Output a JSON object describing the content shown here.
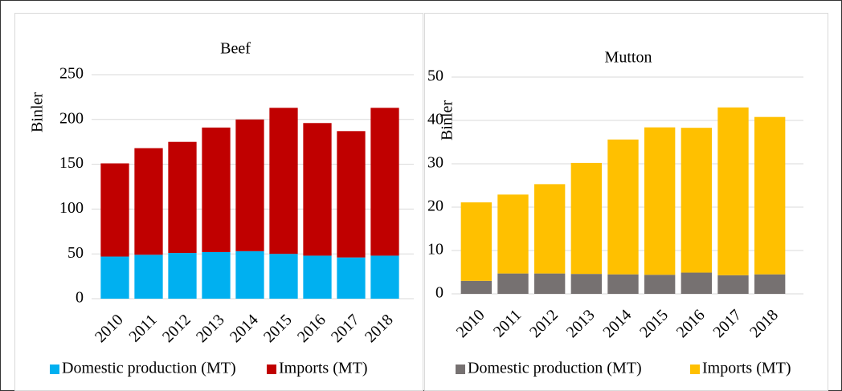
{
  "chart_data": [
    {
      "type": "bar",
      "stacked": true,
      "title": "Beef",
      "y_label": "Binler",
      "categories": [
        "2010",
        "2011",
        "2012",
        "2013",
        "2014",
        "2015",
        "2016",
        "2017",
        "2018"
      ],
      "series": [
        {
          "name": "Domestic production (MT)",
          "color": "#00b0f0",
          "values": [
            47,
            49,
            51,
            52,
            53,
            50,
            48,
            46,
            48
          ]
        },
        {
          "name": "Imports (MT)",
          "color": "#c00000",
          "values": [
            104,
            119,
            124,
            139,
            147,
            163,
            148,
            141,
            165
          ]
        }
      ],
      "ylim": [
        0,
        250
      ],
      "yticks": [
        0,
        50,
        100,
        150,
        200,
        250
      ],
      "grid": true
    },
    {
      "type": "bar",
      "stacked": true,
      "title": "Mutton",
      "y_label": "Binler",
      "categories": [
        "2010",
        "2011",
        "2012",
        "2013",
        "2014",
        "2015",
        "2016",
        "2017",
        "2018"
      ],
      "series": [
        {
          "name": "Domestic production (MT)",
          "color": "#767171",
          "values": [
            3.0,
            4.7,
            4.7,
            4.6,
            4.5,
            4.4,
            4.9,
            4.3,
            4.5
          ]
        },
        {
          "name": "Imports (MT)",
          "color": "#ffc000",
          "values": [
            18.1,
            18.2,
            20.6,
            25.6,
            31.1,
            34.0,
            33.4,
            38.7,
            36.3
          ]
        }
      ],
      "ylim": [
        0,
        50
      ],
      "yticks": [
        0,
        10,
        20,
        30,
        40,
        50
      ],
      "grid": true
    }
  ]
}
